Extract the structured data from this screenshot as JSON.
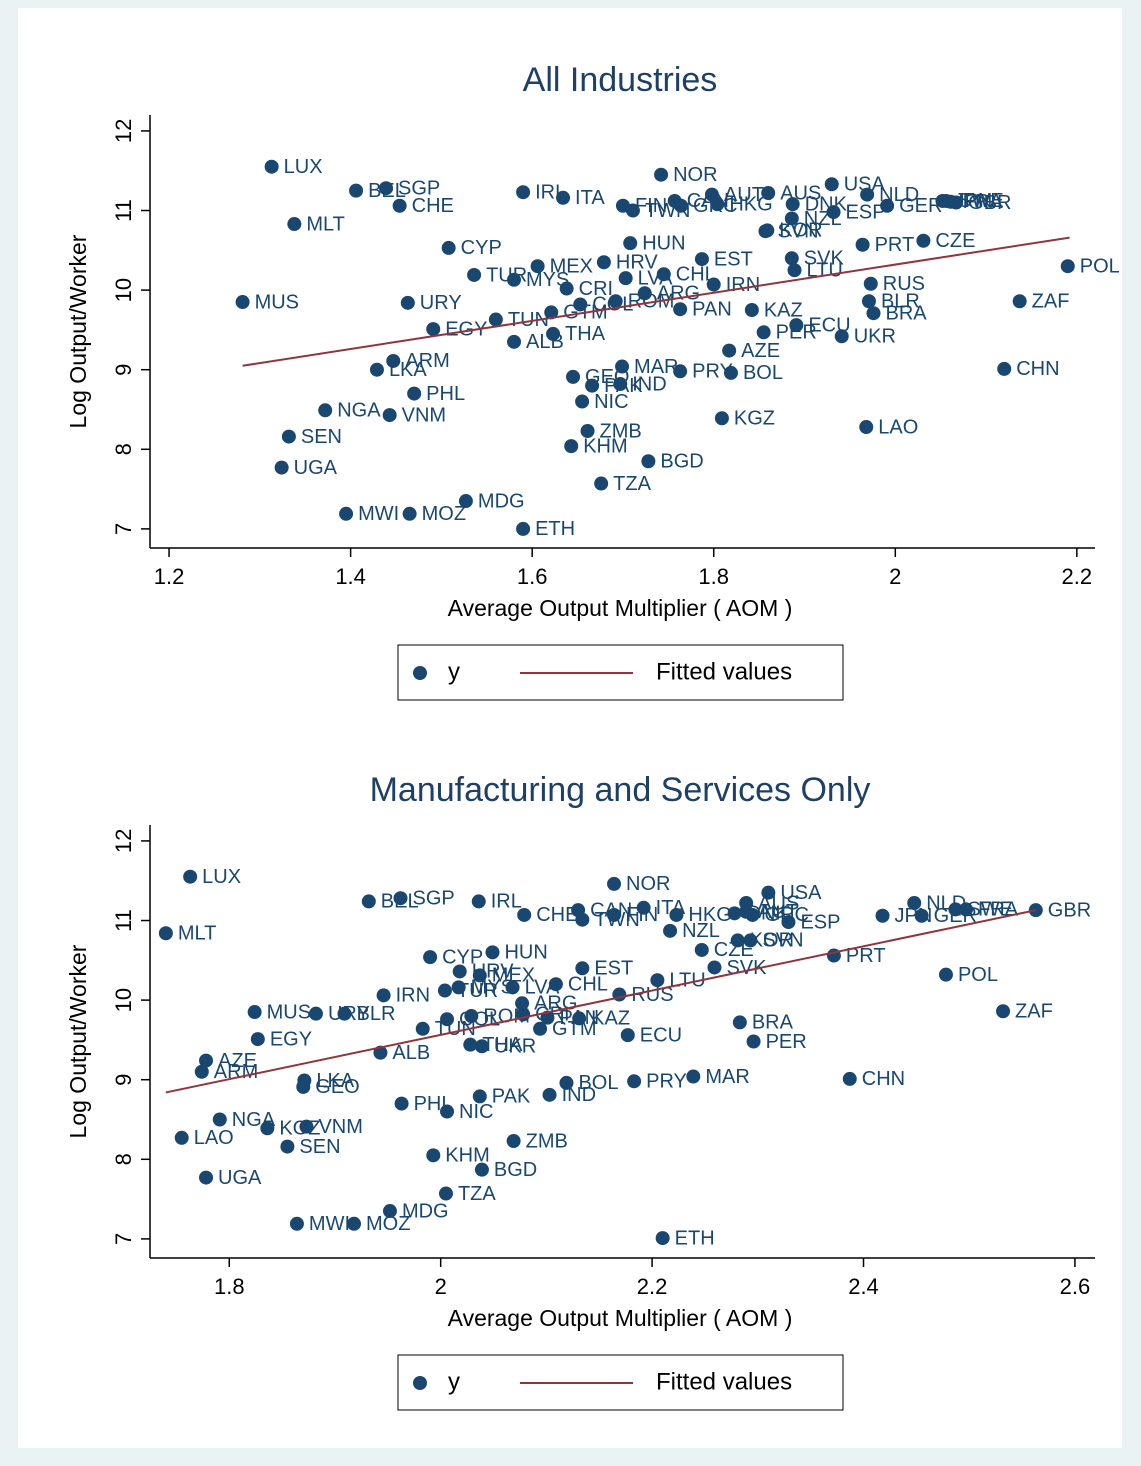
{
  "chart_data": [
    {
      "type": "scatter",
      "title": "All Industries",
      "x_label": "Average Output Multiplier ( AOM )",
      "y_label": "Log Output/Worker",
      "xlim": [
        1.179,
        2.22
      ],
      "ylim": [
        6.76,
        12.2
      ],
      "xticks": [
        1.2,
        1.4,
        1.6,
        1.8,
        2,
        2.2
      ],
      "yticks": [
        7,
        8,
        9,
        10,
        11,
        12
      ],
      "grid": false,
      "series": [
        {
          "name": "y",
          "color": "#1a476f",
          "labels": [
            "LUX",
            "BEL",
            "SGP",
            "CHE",
            "MLT",
            "IRL",
            "ITA",
            "NOR",
            "FIN",
            "TWN",
            "CAN",
            "GRC",
            "AUT",
            "HKG",
            "AUS",
            "DNK",
            "NZL",
            "KOR",
            "SVN",
            "ESP",
            "USA",
            "NLD",
            "GER",
            "JPN",
            "SWE",
            "FRA",
            "GBR",
            "CYP",
            "HUN",
            "HRV",
            "MEX",
            "TUR",
            "MYS",
            "CRI",
            "EST",
            "CHL",
            "LVA",
            "SVK",
            "LTU",
            "PRT",
            "CZE",
            "POL",
            "RUS",
            "IRN",
            "ARG",
            "BLR",
            "BRA",
            "ZAF",
            "MUS",
            "URY",
            "ROM",
            "COL",
            "TUN",
            "GTM",
            "KAZ",
            "PAN",
            "ECU",
            "PER",
            "UKR",
            "EGY",
            "ALB",
            "THA",
            "ARM",
            "LKA",
            "PHL",
            "NGA",
            "VNM",
            "SEN",
            "UGA",
            "AZE",
            "MAR",
            "PRY",
            "BOL",
            "GEO",
            "PAK",
            "IND",
            "NIC",
            "KGZ",
            "LAO",
            "CHN",
            "ZMB",
            "KHM",
            "BGD",
            "TZA",
            "MDG",
            "MWI",
            "MOZ",
            "ETH"
          ],
          "x": [
            1.313,
            1.406,
            1.439,
            1.454,
            1.338,
            1.59,
            1.634,
            1.742,
            1.7,
            1.711,
            1.757,
            1.764,
            1.798,
            1.804,
            1.86,
            1.887,
            1.886,
            1.859,
            1.857,
            1.932,
            1.93,
            1.969,
            1.991,
            2.052,
            2.056,
            2.061,
            2.067,
            1.508,
            1.708,
            1.679,
            1.606,
            1.536,
            1.58,
            1.638,
            1.787,
            1.745,
            1.703,
            1.886,
            1.889,
            1.964,
            2.031,
            2.19,
            1.973,
            1.8,
            1.724,
            1.971,
            1.976,
            2.137,
            1.281,
            1.463,
            1.692,
            1.653,
            1.56,
            1.621,
            1.842,
            1.763,
            1.891,
            1.855,
            1.941,
            1.491,
            1.58,
            1.623,
            1.447,
            1.429,
            1.47,
            1.372,
            1.443,
            1.332,
            1.324,
            1.817,
            1.699,
            1.763,
            1.819,
            1.645,
            1.666,
            1.697,
            1.655,
            1.809,
            1.968,
            2.12,
            1.661,
            1.643,
            1.728,
            1.676,
            1.527,
            1.395,
            1.465,
            1.59
          ],
          "values": [
            11.55,
            11.25,
            11.28,
            11.06,
            10.83,
            11.23,
            11.16,
            11.45,
            11.06,
            11.0,
            11.12,
            11.06,
            11.2,
            11.08,
            11.22,
            11.08,
            10.9,
            10.75,
            10.74,
            10.98,
            11.33,
            11.2,
            11.06,
            11.12,
            11.12,
            11.11,
            11.1,
            10.53,
            10.59,
            10.35,
            10.3,
            10.19,
            10.13,
            10.02,
            10.39,
            10.2,
            10.15,
            10.4,
            10.25,
            10.57,
            10.62,
            10.3,
            10.08,
            10.07,
            9.96,
            9.86,
            9.71,
            9.86,
            9.85,
            9.84,
            9.86,
            9.82,
            9.63,
            9.72,
            9.75,
            9.76,
            9.56,
            9.47,
            9.42,
            9.51,
            9.35,
            9.45,
            9.11,
            9.0,
            8.7,
            8.49,
            8.43,
            8.16,
            7.77,
            9.24,
            9.04,
            8.98,
            8.96,
            8.91,
            8.8,
            8.82,
            8.6,
            8.39,
            8.28,
            9.01,
            8.23,
            8.04,
            7.85,
            7.57,
            7.35,
            7.19,
            7.19,
            7.0
          ]
        },
        {
          "name": "Fitted values",
          "color": "#90353b",
          "x": [
            1.281,
            2.192
          ],
          "values": [
            9.05,
            10.66
          ]
        }
      ]
    },
    {
      "type": "scatter",
      "title": "Manufacturing and Services Only",
      "x_label": "Average Output Multiplier ( AOM )",
      "y_label": "Log Output/Worker",
      "xlim": [
        1.725,
        2.619
      ],
      "ylim": [
        6.76,
        12.2
      ],
      "xticks": [
        1.8,
        2,
        2.2,
        2.4,
        2.6
      ],
      "yticks": [
        7,
        8,
        9,
        10,
        11,
        12
      ],
      "grid": false,
      "series": [
        {
          "name": "y",
          "color": "#1a476f",
          "labels": [
            "LUX",
            "BEL",
            "SGP",
            "CHE",
            "MLT",
            "IRL",
            "ITA",
            "NOR",
            "FIN",
            "TWN",
            "CAN",
            "GRC",
            "AUT",
            "HKG",
            "AUS",
            "DNK",
            "NZL",
            "KOR",
            "SVN",
            "ESP",
            "USA",
            "NLD",
            "GER",
            "JPN",
            "SWE",
            "FRA",
            "GBR",
            "CYP",
            "HUN",
            "HRV",
            "MEX",
            "TUR",
            "MYS",
            "CRI",
            "EST",
            "CHL",
            "LVA",
            "SVK",
            "LTU",
            "PRT",
            "CZE",
            "POL",
            "RUS",
            "IRN",
            "ARG",
            "BLR",
            "BRA",
            "ZAF",
            "MUS",
            "URY",
            "ROM",
            "COL",
            "TUN",
            "GTM",
            "KAZ",
            "PAN",
            "ECU",
            "PER",
            "UKR",
            "EGY",
            "ALB",
            "THA",
            "ARM",
            "LKA",
            "PHL",
            "NGA",
            "VNM",
            "SEN",
            "UGA",
            "AZE",
            "MAR",
            "PRY",
            "BOL",
            "GEO",
            "PAK",
            "IND",
            "NIC",
            "KGZ",
            "LAO",
            "CHN",
            "ZMB",
            "KHM",
            "BGD",
            "TZA",
            "MDG",
            "MWI",
            "MOZ",
            "ETH"
          ],
          "x": [
            1.763,
            1.932,
            1.962,
            2.079,
            1.74,
            2.036,
            2.192,
            2.164,
            2.164,
            2.134,
            2.13,
            2.295,
            2.289,
            2.223,
            2.289,
            2.278,
            2.217,
            2.281,
            2.293,
            2.329,
            2.31,
            2.448,
            2.455,
            2.418,
            2.487,
            2.497,
            2.563,
            1.99,
            2.049,
            2.018,
            2.037,
            2.004,
            2.017,
            2.078,
            2.134,
            2.109,
            2.068,
            2.259,
            2.205,
            2.372,
            2.247,
            2.478,
            2.169,
            1.946,
            2.077,
            1.909,
            2.283,
            2.532,
            1.824,
            1.882,
            2.029,
            2.006,
            1.983,
            2.094,
            2.131,
            2.101,
            2.177,
            2.296,
            2.039,
            1.827,
            1.943,
            2.028,
            1.774,
            1.871,
            1.963,
            1.791,
            1.873,
            1.855,
            1.778,
            1.778,
            2.239,
            2.183,
            2.119,
            1.87,
            2.037,
            2.103,
            2.006,
            1.836,
            1.755,
            2.387,
            2.069,
            1.993,
            2.039,
            2.005,
            1.952,
            1.864,
            1.918,
            2.21
          ],
          "values": [
            11.55,
            11.24,
            11.28,
            11.07,
            10.84,
            11.24,
            11.16,
            11.46,
            11.07,
            11.01,
            11.13,
            11.07,
            11.11,
            11.07,
            11.22,
            11.09,
            10.87,
            10.75,
            10.75,
            10.98,
            11.35,
            11.22,
            11.06,
            11.06,
            11.14,
            11.14,
            11.13,
            10.54,
            10.6,
            10.36,
            10.31,
            10.12,
            10.16,
            9.82,
            10.4,
            10.2,
            10.16,
            10.41,
            10.25,
            10.56,
            10.63,
            10.32,
            10.07,
            10.06,
            9.96,
            9.83,
            9.72,
            9.86,
            9.85,
            9.83,
            9.8,
            9.76,
            9.64,
            9.64,
            9.77,
            9.78,
            9.56,
            9.48,
            9.42,
            9.51,
            9.34,
            9.44,
            9.1,
            8.99,
            8.7,
            8.5,
            8.41,
            8.16,
            7.77,
            9.24,
            9.04,
            8.98,
            8.96,
            8.91,
            8.79,
            8.81,
            8.6,
            8.39,
            8.27,
            9.01,
            8.23,
            8.05,
            7.87,
            7.57,
            7.35,
            7.19,
            7.19,
            7.01
          ]
        },
        {
          "name": "Fitted values",
          "color": "#90353b",
          "x": [
            1.74,
            2.563
          ],
          "values": [
            8.84,
            11.13
          ]
        }
      ]
    }
  ]
}
